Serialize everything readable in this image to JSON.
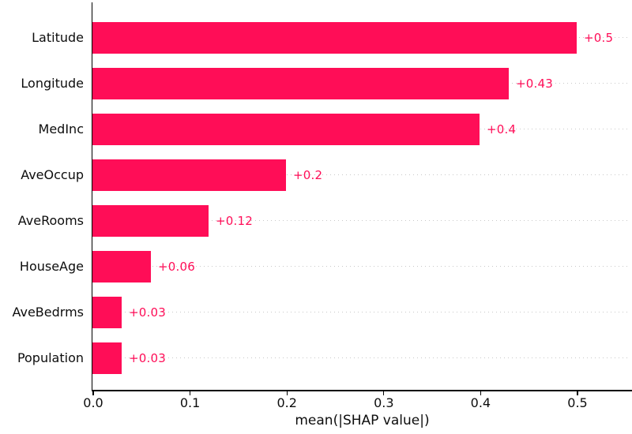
{
  "chart_data": {
    "type": "bar",
    "orientation": "horizontal",
    "title": "",
    "categories": [
      "Latitude",
      "Longitude",
      "MedInc",
      "AveOccup",
      "AveRooms",
      "HouseAge",
      "AveBedrms",
      "Population"
    ],
    "values": [
      0.5,
      0.43,
      0.4,
      0.2,
      0.12,
      0.06,
      0.03,
      0.03
    ],
    "value_labels": [
      "+0.5",
      "+0.43",
      "+0.4",
      "+0.2",
      "+0.12",
      "+0.06",
      "+0.03",
      "+0.03"
    ],
    "xlabel": "mean(|SHAP value|)",
    "ylabel": "",
    "xlim": [
      0,
      0.557
    ],
    "xticks": [
      0.0,
      0.1,
      0.2,
      0.3,
      0.4,
      0.5
    ],
    "xtick_labels": [
      "0.0",
      "0.1",
      "0.2",
      "0.3",
      "0.4",
      "0.5"
    ],
    "grid": "horizontal-dotted",
    "legend": null,
    "colors": {
      "bar": "#ff0d57",
      "value_label": "#ff0d57",
      "gridline": "#c8c8c8",
      "axis": "#000000",
      "text": "#0d0d0d",
      "background": "#ffffff"
    }
  }
}
